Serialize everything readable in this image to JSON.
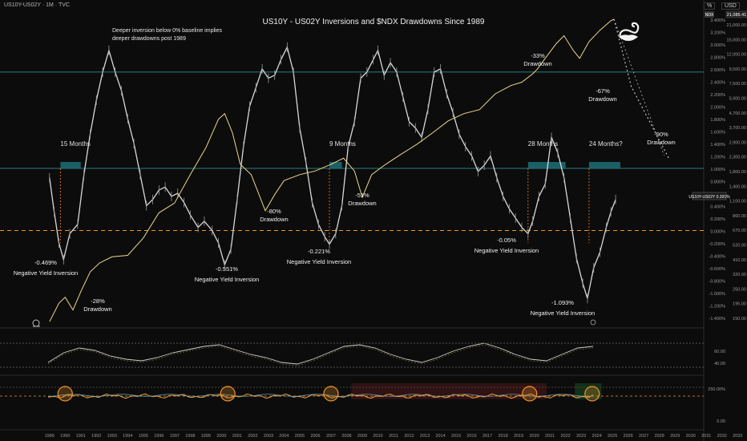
{
  "header": {
    "symbol": "US10Y-US02Y · 1M · TVC",
    "scale_left": "%",
    "scale_right": "USD"
  },
  "colors": {
    "background": "#0c0c0c",
    "spread_line": "#d8d8d8",
    "ndx_line": "#e8d98a",
    "baseline": "#f0962a",
    "zone": "#1f6f78",
    "zone_line": "#3aa0a8",
    "inversion_marker": "#c86a2a",
    "circle": "#f0962a"
  },
  "chart_data": [
    {
      "type": "line",
      "title": "US10Y - US02Y Inversions and $NDX Drawdowns Since 1989",
      "note": "Deeper inversion below 0% baseline implies deeper drawdowns post 1989",
      "x_ticks": [
        "1989",
        "1990",
        "1991",
        "1992",
        "1993",
        "1994",
        "1995",
        "1996",
        "1997",
        "1998",
        "1999",
        "2000",
        "2001",
        "2002",
        "2003",
        "2004",
        "2005",
        "2006",
        "2007",
        "2008",
        "2009",
        "2010",
        "2011",
        "2012",
        "2013",
        "2014",
        "2015",
        "2016",
        "2017",
        "2018",
        "2019",
        "2020",
        "2021",
        "2022",
        "2023",
        "2024",
        "2025",
        "2026",
        "2027",
        "2028",
        "2029",
        "2030",
        "2031",
        "2032",
        "2033"
      ],
      "xlim": [
        1988.5,
        2033.5
      ],
      "series": [
        {
          "axis": "left",
          "points": [
            [
              1989.0,
              0.85
            ],
            [
              1989.3,
              0.3
            ],
            [
              1989.6,
              -0.2
            ],
            [
              1989.9,
              -0.469
            ],
            [
              1990.3,
              -0.05
            ],
            [
              1990.8,
              0.1
            ],
            [
              1991.2,
              0.9
            ],
            [
              1991.6,
              1.55
            ],
            [
              1992.0,
              2.1
            ],
            [
              1992.4,
              2.55
            ],
            [
              1992.8,
              2.9
            ],
            [
              1993.2,
              2.55
            ],
            [
              1993.6,
              2.25
            ],
            [
              1994.0,
              1.8
            ],
            [
              1994.4,
              1.4
            ],
            [
              1994.8,
              0.9
            ],
            [
              1995.2,
              0.4
            ],
            [
              1995.6,
              0.5
            ],
            [
              1996.0,
              0.65
            ],
            [
              1996.4,
              0.7
            ],
            [
              1996.8,
              0.55
            ],
            [
              1997.2,
              0.6
            ],
            [
              1997.6,
              0.45
            ],
            [
              1998.0,
              0.25
            ],
            [
              1998.5,
              0.05
            ],
            [
              1998.9,
              0.15
            ],
            [
              1999.4,
              0.0
            ],
            [
              1999.8,
              -0.2
            ],
            [
              2000.2,
              -0.551
            ],
            [
              2000.6,
              -0.3
            ],
            [
              2001.0,
              0.5
            ],
            [
              2001.4,
              1.35
            ],
            [
              2001.8,
              2.0
            ],
            [
              2002.2,
              2.3
            ],
            [
              2002.6,
              2.6
            ],
            [
              2003.0,
              2.45
            ],
            [
              2003.4,
              2.5
            ],
            [
              2003.8,
              2.75
            ],
            [
              2004.2,
              2.95
            ],
            [
              2004.6,
              2.55
            ],
            [
              2005.0,
              1.65
            ],
            [
              2005.4,
              1.1
            ],
            [
              2005.8,
              0.45
            ],
            [
              2006.2,
              0.1
            ],
            [
              2006.6,
              -0.1
            ],
            [
              2006.9,
              -0.221
            ],
            [
              2007.3,
              -0.05
            ],
            [
              2007.7,
              0.4
            ],
            [
              2008.1,
              1.35
            ],
            [
              2008.5,
              1.75
            ],
            [
              2008.9,
              2.45
            ],
            [
              2009.3,
              2.55
            ],
            [
              2009.7,
              2.75
            ],
            [
              2010.0,
              2.9
            ],
            [
              2010.4,
              2.5
            ],
            [
              2010.8,
              2.7
            ],
            [
              2011.2,
              2.55
            ],
            [
              2011.6,
              2.15
            ],
            [
              2012.0,
              1.75
            ],
            [
              2012.4,
              1.65
            ],
            [
              2012.8,
              1.5
            ],
            [
              2013.2,
              1.95
            ],
            [
              2013.6,
              2.55
            ],
            [
              2014.0,
              2.6
            ],
            [
              2014.4,
              2.2
            ],
            [
              2014.8,
              1.9
            ],
            [
              2015.2,
              1.55
            ],
            [
              2015.6,
              1.35
            ],
            [
              2016.0,
              1.2
            ],
            [
              2016.4,
              0.95
            ],
            [
              2016.8,
              1.05
            ],
            [
              2017.2,
              1.2
            ],
            [
              2017.6,
              0.85
            ],
            [
              2018.0,
              0.55
            ],
            [
              2018.4,
              0.35
            ],
            [
              2018.8,
              0.2
            ],
            [
              2019.2,
              0.05
            ],
            [
              2019.6,
              -0.05
            ],
            [
              2019.9,
              0.15
            ],
            [
              2020.3,
              0.55
            ],
            [
              2020.7,
              0.75
            ],
            [
              2021.1,
              1.5
            ],
            [
              2021.5,
              1.25
            ],
            [
              2021.9,
              0.85
            ],
            [
              2022.3,
              0.2
            ],
            [
              2022.7,
              -0.45
            ],
            [
              2023.1,
              -0.85
            ],
            [
              2023.4,
              -1.093
            ],
            [
              2023.8,
              -0.6
            ],
            [
              2024.2,
              -0.35
            ],
            [
              2024.6,
              0.05
            ],
            [
              2024.9,
              0.3
            ],
            [
              2025.2,
              0.5
            ]
          ],
          "color": "#d8d8d8"
        },
        {
          "axis": "right",
          "points": [
            [
              1989.0,
              140
            ],
            [
              1989.6,
              190
            ],
            [
              1990.0,
              210
            ],
            [
              1990.5,
              170
            ],
            [
              1991.0,
              230
            ],
            [
              1991.6,
              320
            ],
            [
              1992.2,
              370
            ],
            [
              1993.0,
              410
            ],
            [
              1994.0,
              420
            ],
            [
              1995.0,
              560
            ],
            [
              1996.0,
              850
            ],
            [
              1997.0,
              1000
            ],
            [
              1998.0,
              1600
            ],
            [
              1999.0,
              2500
            ],
            [
              1999.8,
              4000
            ],
            [
              2000.2,
              4400
            ],
            [
              2000.7,
              3200
            ],
            [
              2001.2,
              1900
            ],
            [
              2001.9,
              1600
            ],
            [
              2002.8,
              880
            ],
            [
              2003.4,
              1150
            ],
            [
              2004.0,
              1450
            ],
            [
              2005.0,
              1600
            ],
            [
              2006.0,
              1700
            ],
            [
              2007.0,
              1900
            ],
            [
              2007.8,
              2100
            ],
            [
              2008.5,
              1700
            ],
            [
              2009.0,
              1100
            ],
            [
              2009.6,
              1600
            ],
            [
              2010.5,
              1900
            ],
            [
              2011.5,
              2250
            ],
            [
              2012.5,
              2650
            ],
            [
              2013.5,
              3200
            ],
            [
              2014.5,
              3900
            ],
            [
              2015.5,
              4400
            ],
            [
              2016.5,
              4700
            ],
            [
              2017.5,
              6100
            ],
            [
              2018.5,
              7000
            ],
            [
              2019.2,
              7400
            ],
            [
              2019.9,
              8500
            ],
            [
              2020.2,
              9200
            ],
            [
              2020.7,
              11000
            ],
            [
              2021.4,
              14000
            ],
            [
              2021.9,
              16000
            ],
            [
              2022.5,
              12500
            ],
            [
              2022.9,
              11000
            ],
            [
              2023.5,
              14500
            ],
            [
              2024.2,
              17500
            ],
            [
              2024.9,
              20500
            ],
            [
              2025.1,
              21000
            ]
          ],
          "color": "#e8d98a"
        }
      ],
      "left_ticks": [
        "3.400%",
        "3.200%",
        "3.000%",
        "2.800%",
        "2.600%",
        "2.400%",
        "2.200%",
        "2.000%",
        "1.800%",
        "1.600%",
        "1.400%",
        "1.200%",
        "1.000%",
        "0.800%",
        "0.600%",
        "0.400%",
        "0.200%",
        "0.000%",
        "-0.200%",
        "-0.400%",
        "-0.600%",
        "-0.800%",
        "-1.000%",
        "-1.200%",
        "-1.400%"
      ],
      "right_ticks": [
        "21,000.00",
        "15,000.00",
        "12,000.00",
        "9,500.00",
        "7,500.00",
        "5,900.00",
        "4,700.00",
        "3,700.00",
        "2,900.00",
        "2,300.00",
        "1,800.00",
        "1,400.00",
        "1,100.00",
        "860.00",
        "670.00",
        "520.00",
        "410.00",
        "320.00",
        "250.00",
        "195.00",
        "150.00"
      ],
      "price_label_ndx": "21,085.41",
      "ndx_tag": "NDX",
      "price_label_spread": "0.391%",
      "spread_tag": "US10Y-US02Y",
      "baseline": 0.0,
      "zone_lines": [
        2.55,
        1.0
      ],
      "zones": [
        {
          "start": 1989.7,
          "end": 1991.0,
          "label": "15 Months"
        },
        {
          "start": 2006.9,
          "end": 2007.7,
          "label": "9 Months"
        },
        {
          "start": 2019.6,
          "end": 2022.0,
          "label": "28 Months"
        },
        {
          "start": 2023.5,
          "end": 2025.5,
          "label": "24 Months?"
        }
      ],
      "inversion_labels": [
        {
          "x": 1989.9,
          "value": "-0.469%",
          "text": "Negative Yield Inversion"
        },
        {
          "x": 2000.2,
          "value": "-0.551%",
          "text": "Negative Yield Inversion"
        },
        {
          "x": 2006.9,
          "value": "-0.221%",
          "text": "Negative Yield Inversion"
        },
        {
          "x": 2019.6,
          "value": "-0.05%",
          "text": "Negative Yield Inversion"
        },
        {
          "x": 2023.4,
          "value": "-1.093%",
          "text": "Negative Yield Inversion"
        }
      ],
      "drawdown_labels": [
        {
          "value": "-28%",
          "text": "Drawdown"
        },
        {
          "value": "-80%",
          "text": "Drawdown"
        },
        {
          "value": "-51%",
          "text": "Drawdown"
        },
        {
          "value": "-33%",
          "text": "Drawdown"
        },
        {
          "value": "-67%",
          "text": "Drawdown"
        },
        {
          "value": "-90%",
          "text": "Drawdown"
        }
      ]
    },
    {
      "type": "line",
      "subplot": "oscillator-1",
      "ticks": [
        "60.00",
        "40.00"
      ],
      "values": [
        40,
        52,
        58,
        55,
        48,
        44,
        42,
        46,
        52,
        56,
        60,
        62,
        56,
        50,
        46,
        40,
        38,
        44,
        52,
        60,
        62,
        58,
        50,
        44,
        40,
        46,
        54,
        60,
        64,
        58,
        50,
        44,
        42,
        50,
        58,
        60
      ]
    },
    {
      "type": "line",
      "subplot": "oscillator-2",
      "ticks": [
        "250.00%",
        "0.00"
      ],
      "circles_at": [
        1990.0,
        2000.4,
        2007.0,
        2019.7,
        2023.7
      ]
    }
  ]
}
